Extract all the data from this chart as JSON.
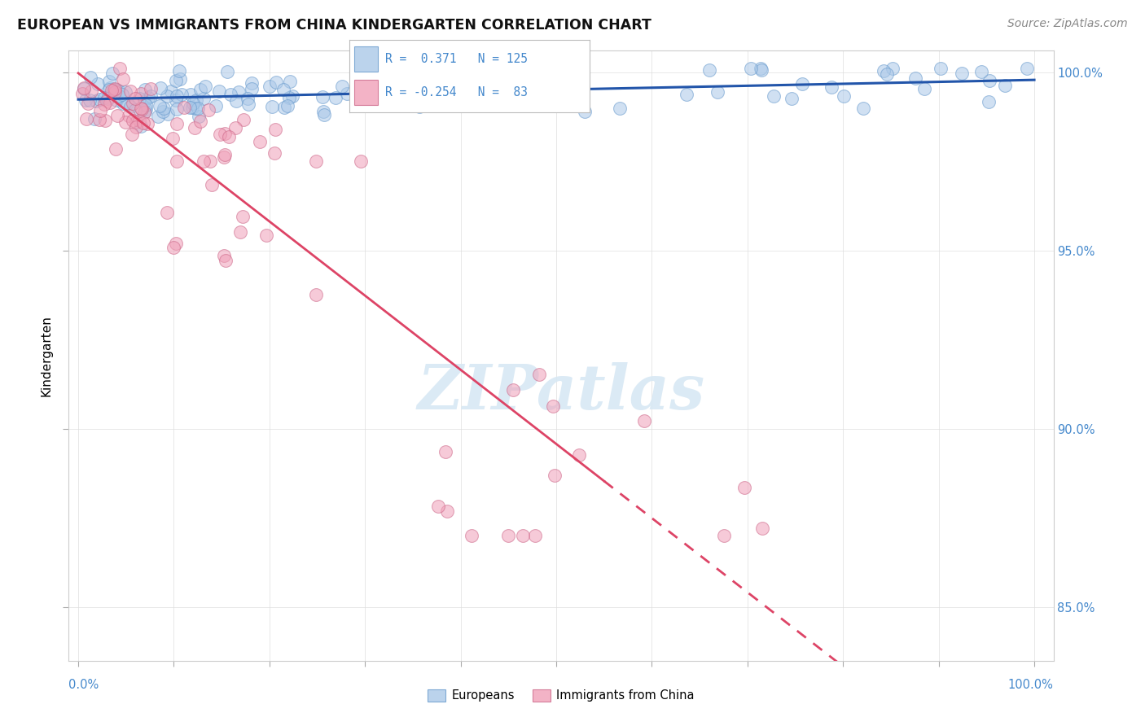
{
  "title": "EUROPEAN VS IMMIGRANTS FROM CHINA KINDERGARTEN CORRELATION CHART",
  "source": "Source: ZipAtlas.com",
  "ylabel": "Kindergarten",
  "blue_R": 0.371,
  "blue_N": 125,
  "pink_R": -0.254,
  "pink_N": 83,
  "blue_color": "#aac8e8",
  "blue_edge_color": "#6699cc",
  "pink_color": "#f0a0b8",
  "pink_edge_color": "#cc6688",
  "blue_line_color": "#2255aa",
  "pink_line_color": "#dd4466",
  "background_color": "#ffffff",
  "watermark_color": "#d8e8f4",
  "grid_color": "#dddddd",
  "right_tick_color": "#4488cc",
  "title_color": "#111111",
  "source_color": "#888888"
}
